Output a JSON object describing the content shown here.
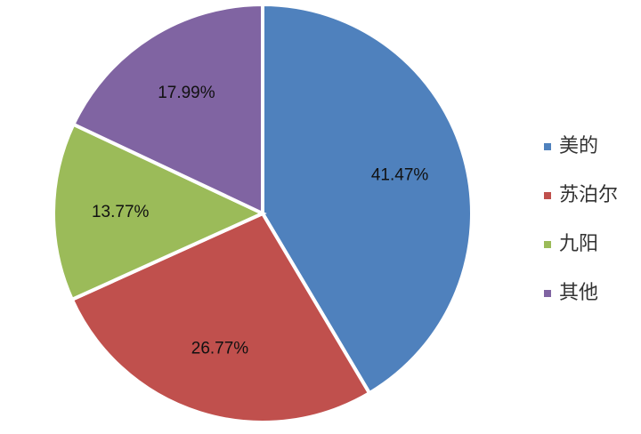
{
  "chart_data": {
    "type": "pie",
    "categories": [
      "美的",
      "苏泊尔",
      "九阳",
      "其他"
    ],
    "values": [
      41.47,
      26.77,
      13.77,
      17.99
    ],
    "value_labels": [
      "41.47%",
      "26.77%",
      "13.77%",
      "17.99%"
    ],
    "colors": [
      "#4f81bd",
      "#c0504d",
      "#9bbb59",
      "#8064a2"
    ],
    "legend": "right"
  }
}
